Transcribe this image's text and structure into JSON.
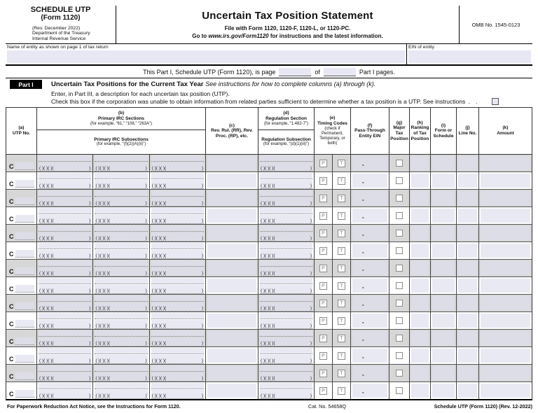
{
  "form": {
    "schedule_name": "SCHEDULE UTP",
    "form_number": "(Form 1120)",
    "revision": "(Rev. December 2022)",
    "agency_line1": "Department of the Treasury",
    "agency_line2": "Internal Revenue Service",
    "title": "Uncertain Tax Position Statement",
    "file_with": "File with Form 1120, 1120-F, 1120-L, or 1120-PC.",
    "go_to_prefix": "Go to ",
    "go_to_url": "www.irs.gov/Form1120",
    "go_to_suffix": " for instructions and the latest information.",
    "omb": "OMB No. 1545-0123"
  },
  "entity": {
    "name_label": "Name of entity as shown on page 1 of tax return",
    "name_value": "",
    "ein_label": "EIN of entity",
    "ein_value": ""
  },
  "page_line": {
    "before": "This Part I, Schedule UTP (Form 1120), is page",
    "middle": "of",
    "after": "Part I pages.",
    "page_value": "",
    "total_value": ""
  },
  "part1": {
    "label": "Part I",
    "heading": "Uncertain Tax Positions for the Current Tax Year",
    "heading_note": "See instructions for how to complete columns (a) through (k).",
    "line2": "Enter, in Part III, a description for each uncertain tax position (UTP).",
    "line3": "Check this box if the corporation was unable to obtain information from related parties sufficient to determine whether a tax position is a UTP. See instructions",
    "leader": ".  ."
  },
  "table": {
    "columns": {
      "a": {
        "code": "(a)",
        "label": "UTP No."
      },
      "b": {
        "code": "(b)",
        "label": "Primary IRC Sections",
        "example": "(for example, “61,” “108,” “263A”)",
        "sub_label": "Primary IRC Subsections",
        "sub_example": "(for example, “(f)(2)(A)(ii)”)"
      },
      "c": {
        "code": "(c)",
        "label": "Rev. Rul. (RR), Rev. Proc. (RP), etc."
      },
      "d": {
        "code": "(d)",
        "label": "Regulation Section",
        "example": "(for example, “1.482-7”)",
        "sub_label": "Regulation Subsection",
        "sub_example": "(for example, “(d)(1)(iii)”)"
      },
      "e": {
        "code": "(e)",
        "label": "Timing Codes",
        "note": "(check if Permanent, Temporary, or both)",
        "p": "P",
        "t": "T"
      },
      "f": {
        "code": "(f)",
        "label": "Pass-Through Entity EIN"
      },
      "g": {
        "code": "(g)",
        "label": "Major Tax Position"
      },
      "h": {
        "code": "(h)",
        "label": "Ranking of Tax Position"
      },
      "i": {
        "code": "(i)",
        "label": "Form or Schedule"
      },
      "j": {
        "code": "(j)",
        "label": "Line No."
      },
      "k": {
        "code": "(k)",
        "label": "Amount"
      }
    },
    "row_prefix": "C",
    "row_count": 14,
    "paren_pattern": "(  )(  )(  )(",
    "paren_close": ")",
    "ein_dash": "-"
  },
  "footer": {
    "left": "For Paperwork Reduction Act Notice, see the Instructions for Form 1120.",
    "cat": "Cat. No. 54658Q",
    "right": "Schedule UTP (Form 1120) (Rev. 12-2022)"
  },
  "colors": {
    "field_highlight": "#e8e8f4",
    "row_shade": "#d7d7d7",
    "part_bar": "#000000"
  }
}
